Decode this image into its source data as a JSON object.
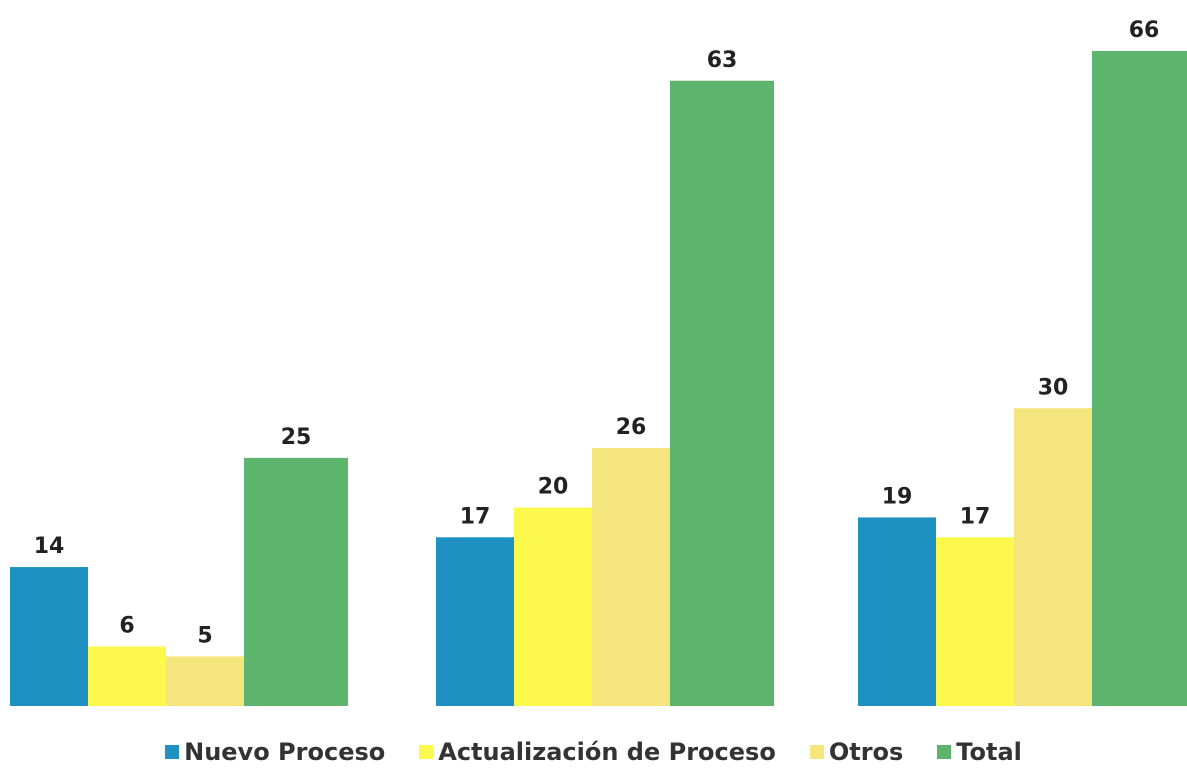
{
  "chart_data": {
    "type": "bar",
    "categories": [
      "",
      "",
      ""
    ],
    "series": [
      {
        "name": "Nuevo Proceso",
        "color": "#1e90c1",
        "values": [
          14,
          17,
          19
        ]
      },
      {
        "name": "Actualización de Proceso",
        "color": "#fdf94c",
        "values": [
          6,
          20,
          17
        ]
      },
      {
        "name": "Otros",
        "color": "#f4e67d",
        "values": [
          5,
          26,
          30
        ]
      },
      {
        "name": "Total",
        "color": "#5db56d",
        "values": [
          25,
          63,
          66
        ]
      }
    ],
    "ylim": [
      0,
      66
    ],
    "data_labels": true,
    "grid": false,
    "legend_position": "bottom"
  }
}
